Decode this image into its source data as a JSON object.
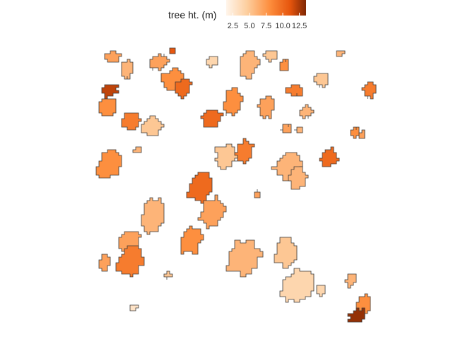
{
  "legend": {
    "title": "tree ht. (m)",
    "ticks": [
      "2.5",
      "5.0",
      "7.5",
      "10.0",
      "12.5"
    ],
    "tick_values": [
      2.5,
      5.0,
      7.5,
      10.0,
      12.5
    ],
    "range": [
      1.5,
      13.5
    ]
  },
  "palette": {
    "low": "#fff5eb",
    "mid1": "#fdd0a2",
    "mid2": "#fd8d3c",
    "mid3": "#e6550d",
    "high": "#7f2704",
    "outline": "#3a3a3a"
  },
  "tree_crowns": [
    {
      "id": 1,
      "h": 7
    },
    {
      "id": 2,
      "h": 6
    },
    {
      "id": 3,
      "h": 12
    },
    {
      "id": 4,
      "h": 8
    },
    {
      "id": 5,
      "h": 9
    },
    {
      "id": 6,
      "h": 5
    },
    {
      "id": 7,
      "h": 7
    },
    {
      "id": 8,
      "h": 8
    },
    {
      "id": 9,
      "h": 10
    },
    {
      "id": 10,
      "h": 11
    },
    {
      "id": 11,
      "h": 4
    },
    {
      "id": 12,
      "h": 6
    },
    {
      "id": 13,
      "h": 5
    },
    {
      "id": 14,
      "h": 8
    },
    {
      "id": 15,
      "h": 9
    },
    {
      "id": 16,
      "h": 7
    },
    {
      "id": 17,
      "h": 6
    },
    {
      "id": 18,
      "h": 5
    },
    {
      "id": 19,
      "h": 9
    },
    {
      "id": 20,
      "h": 6
    },
    {
      "id": 21,
      "h": 10
    },
    {
      "id": 22,
      "h": 8
    },
    {
      "id": 23,
      "h": 7
    },
    {
      "id": 24,
      "h": 6
    },
    {
      "id": 25,
      "h": 5
    },
    {
      "id": 26,
      "h": 9
    },
    {
      "id": 27,
      "h": 6
    },
    {
      "id": 28,
      "h": 10
    },
    {
      "id": 29,
      "h": 6
    },
    {
      "id": 30,
      "h": 8
    },
    {
      "id": 31,
      "h": 7
    },
    {
      "id": 32,
      "h": 8
    },
    {
      "id": 33,
      "h": 6
    },
    {
      "id": 34,
      "h": 10
    },
    {
      "id": 35,
      "h": 7
    },
    {
      "id": 36,
      "h": 8
    },
    {
      "id": 37,
      "h": 6
    },
    {
      "id": 38,
      "h": 7
    },
    {
      "id": 39,
      "h": 9
    },
    {
      "id": 40,
      "h": 7
    },
    {
      "id": 41,
      "h": 6
    },
    {
      "id": 42,
      "h": 5
    },
    {
      "id": 43,
      "h": 4
    },
    {
      "id": 44,
      "h": 4
    },
    {
      "id": 45,
      "h": 8
    },
    {
      "id": 46,
      "h": 13
    },
    {
      "id": 47,
      "h": 3
    },
    {
      "id": 48,
      "h": 5
    },
    {
      "id": 49,
      "h": 7
    },
    {
      "id": 50,
      "h": 6
    }
  ]
}
